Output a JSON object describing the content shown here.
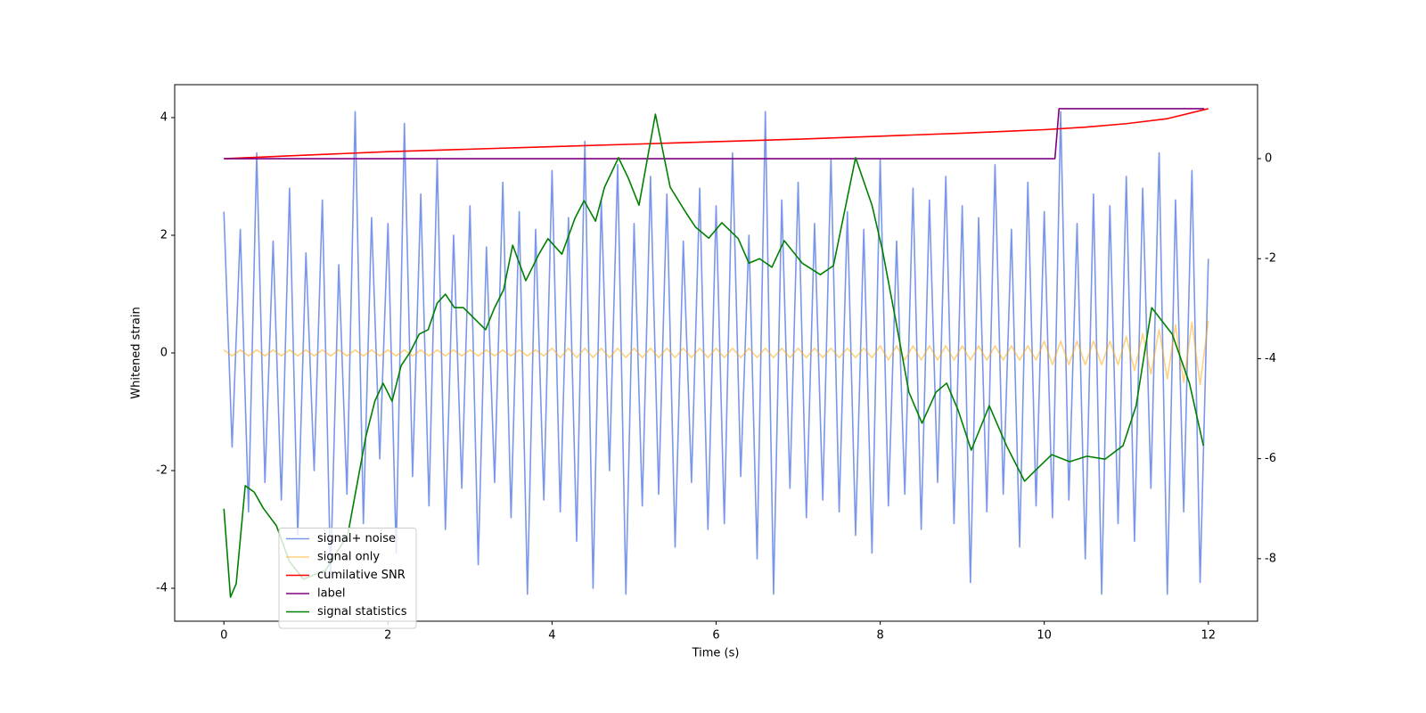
{
  "chart_data": {
    "type": "line",
    "xlabel": "Time (s)",
    "ylabel": "Whitened strain",
    "xlim": [
      -0.6,
      12.6
    ],
    "xticks": [
      0,
      2,
      4,
      6,
      8,
      10,
      12
    ],
    "ylim": [
      -4.56,
      4.56
    ],
    "yticks": [
      -4,
      -2,
      0,
      2,
      4
    ],
    "y2lim": [
      -9.25,
      1.48
    ],
    "y2ticks": [
      -8,
      -6,
      -4,
      -2,
      0
    ],
    "legend": "lower left",
    "x": [
      0,
      0.1,
      0.2,
      0.3,
      0.4,
      0.5,
      0.6,
      0.7,
      0.8,
      0.9,
      1,
      1.1,
      1.2,
      1.3,
      1.4,
      1.5,
      1.6,
      1.7,
      1.8,
      1.9,
      2,
      2.1,
      2.2,
      2.3,
      2.4,
      2.5,
      2.6,
      2.7,
      2.8,
      2.9,
      3,
      3.1,
      3.2,
      3.3,
      3.4,
      3.5,
      3.6,
      3.7,
      3.8,
      3.9,
      4,
      4.1,
      4.2,
      4.3,
      4.4,
      4.5,
      4.6,
      4.7,
      4.8,
      4.9,
      5,
      5.1,
      5.2,
      5.3,
      5.4,
      5.5,
      5.6,
      5.7,
      5.8,
      5.9,
      6,
      6.1,
      6.2,
      6.3,
      6.4,
      6.5,
      6.6,
      6.7,
      6.8,
      6.9,
      7,
      7.1,
      7.2,
      7.3,
      7.4,
      7.5,
      7.6,
      7.7,
      7.8,
      7.9,
      8,
      8.1,
      8.2,
      8.3,
      8.4,
      8.5,
      8.6,
      8.7,
      8.8,
      8.9,
      9,
      9.1,
      9.2,
      9.3,
      9.4,
      9.5,
      9.6,
      9.7,
      9.8,
      9.9,
      10,
      10.1,
      10.2,
      10.3,
      10.4,
      10.5,
      10.6,
      10.7,
      10.8,
      10.9,
      11,
      11.1,
      11.2,
      11.3,
      11.4,
      11.5,
      11.6,
      11.7,
      11.8,
      11.9,
      12
    ],
    "series": [
      {
        "name": "signal+ noise",
        "color": "#4169e1",
        "alpha": 0.7,
        "axis": "y",
        "values": [
          2.4,
          -1.6,
          2.1,
          -2.7,
          3.4,
          -2.2,
          1.9,
          -2.5,
          2.8,
          -3.1,
          1.7,
          -2.0,
          2.6,
          -3.8,
          1.5,
          -2.4,
          4.1,
          -2.9,
          2.3,
          -1.8,
          2.2,
          -3.4,
          3.9,
          -2.1,
          2.7,
          -2.6,
          3.3,
          -3.0,
          2.0,
          -2.3,
          2.5,
          -3.6,
          1.8,
          -2.2,
          2.9,
          -2.8,
          2.4,
          -4.1,
          2.1,
          -2.5,
          3.1,
          -2.7,
          2.3,
          -3.2,
          3.6,
          -4.0,
          2.6,
          -2.0,
          3.2,
          -4.1,
          2.2,
          -2.6,
          3.0,
          -2.4,
          2.7,
          -3.3,
          1.9,
          -2.2,
          2.8,
          -3.0,
          2.5,
          -2.9,
          3.4,
          -2.1,
          2.0,
          -3.5,
          4.1,
          -4.1,
          2.6,
          -2.3,
          2.9,
          -2.8,
          2.2,
          -2.5,
          3.3,
          -2.7,
          2.4,
          -3.1,
          2.1,
          -3.4,
          3.3,
          -2.6,
          1.9,
          -2.4,
          2.8,
          -3.0,
          2.6,
          -2.2,
          3.0,
          -2.9,
          2.5,
          -3.9,
          2.3,
          -2.7,
          3.2,
          -2.4,
          2.1,
          -3.3,
          2.9,
          -2.6,
          2.4,
          -2.8,
          4.1,
          -2.5,
          2.2,
          -3.5,
          2.7,
          -4.1,
          2.5,
          -2.9,
          3.0,
          -3.2,
          2.8,
          -2.3,
          3.4,
          -4.1,
          2.6,
          -2.7,
          3.1,
          -3.9,
          1.6
        ]
      },
      {
        "name": "signal only",
        "color": "orange",
        "alpha": 0.5,
        "axis": "y",
        "values": [
          0.05,
          -0.05,
          0.05,
          -0.05,
          0.05,
          -0.05,
          0.05,
          -0.05,
          0.05,
          -0.05,
          0.05,
          -0.05,
          0.05,
          -0.05,
          0.05,
          -0.05,
          0.05,
          -0.05,
          0.05,
          -0.05,
          0.05,
          -0.05,
          0.05,
          -0.05,
          0.05,
          -0.05,
          0.05,
          -0.05,
          0.05,
          -0.05,
          0.05,
          -0.05,
          0.05,
          -0.05,
          0.05,
          -0.05,
          0.05,
          -0.05,
          0.05,
          -0.05,
          0.08,
          -0.08,
          0.08,
          -0.08,
          0.08,
          -0.08,
          0.08,
          -0.08,
          0.08,
          -0.08,
          0.08,
          -0.08,
          0.08,
          -0.08,
          0.08,
          -0.08,
          0.08,
          -0.08,
          0.08,
          -0.08,
          0.08,
          -0.08,
          0.08,
          -0.08,
          0.08,
          -0.08,
          0.08,
          -0.08,
          0.08,
          -0.08,
          0.08,
          -0.08,
          0.08,
          -0.08,
          0.08,
          -0.08,
          0.08,
          -0.08,
          0.08,
          -0.08,
          0.12,
          -0.12,
          0.12,
          -0.12,
          0.12,
          -0.12,
          0.12,
          -0.12,
          0.12,
          -0.12,
          0.12,
          -0.12,
          0.12,
          -0.12,
          0.12,
          -0.12,
          0.12,
          -0.12,
          0.12,
          -0.12,
          0.2,
          -0.2,
          0.2,
          -0.2,
          0.2,
          -0.2,
          0.2,
          -0.2,
          0.2,
          -0.2,
          0.28,
          -0.3,
          0.33,
          -0.36,
          0.4,
          -0.44,
          0.48,
          -0.5,
          0.52,
          -0.54,
          0.55
        ]
      },
      {
        "name": "cumilative SNR",
        "color": "red",
        "axis": "y2",
        "x": [
          0,
          1,
          2,
          3,
          4,
          5,
          6,
          7,
          8,
          9,
          10,
          10.5,
          11,
          11.5,
          12
        ],
        "values": [
          0,
          0.07,
          0.14,
          0.19,
          0.24,
          0.29,
          0.34,
          0.39,
          0.45,
          0.51,
          0.58,
          0.63,
          0.7,
          0.8,
          1.0
        ]
      },
      {
        "name": "label",
        "color": "purple",
        "axis": "y2",
        "x": [
          0,
          10.13,
          10.18,
          11.95
        ],
        "values": [
          0,
          0,
          1,
          1
        ]
      },
      {
        "name": "signal statistics",
        "color": "green",
        "axis": "y2",
        "x": [
          0,
          0.08,
          0.15,
          0.26,
          0.37,
          0.48,
          0.64,
          0.8,
          0.97,
          1.24,
          1.51,
          1.73,
          1.84,
          1.94,
          2.05,
          2.16,
          2.27,
          2.38,
          2.49,
          2.6,
          2.7,
          2.81,
          2.92,
          3.03,
          3.19,
          3.3,
          3.41,
          3.52,
          3.68,
          3.84,
          3.95,
          4.12,
          4.28,
          4.39,
          4.53,
          4.64,
          4.81,
          4.93,
          5.06,
          5.26,
          5.44,
          5.64,
          5.75,
          5.91,
          6.07,
          6.27,
          6.4,
          6.53,
          6.68,
          6.83,
          7.05,
          7.27,
          7.43,
          7.7,
          7.9,
          8.03,
          8.19,
          8.35,
          8.51,
          8.68,
          8.81,
          8.95,
          9.11,
          9.33,
          9.54,
          9.76,
          9.87,
          10.09,
          10.31,
          10.52,
          10.74,
          10.96,
          11.12,
          11.31,
          11.56,
          11.77,
          11.94
        ],
        "values": [
          -7.0,
          -8.77,
          -8.5,
          -6.54,
          -6.67,
          -6.99,
          -7.34,
          -8.06,
          -8.41,
          -8.23,
          -7.52,
          -5.56,
          -4.85,
          -4.49,
          -4.85,
          -4.14,
          -3.87,
          -3.51,
          -3.42,
          -2.89,
          -2.71,
          -2.98,
          -2.98,
          -3.16,
          -3.42,
          -2.98,
          -2.62,
          -1.73,
          -2.44,
          -1.91,
          -1.6,
          -1.91,
          -1.19,
          -0.84,
          -1.25,
          -0.57,
          0.02,
          -0.39,
          -0.93,
          0.89,
          -0.57,
          -1.1,
          -1.37,
          -1.59,
          -1.28,
          -1.6,
          -2.09,
          -2.0,
          -2.17,
          -1.64,
          -2.09,
          -2.32,
          -2.14,
          0.02,
          -0.93,
          -1.85,
          -3.24,
          -4.67,
          -5.29,
          -4.67,
          -4.49,
          -5.03,
          -5.83,
          -4.94,
          -5.74,
          -6.45,
          -6.27,
          -5.92,
          -6.06,
          -5.95,
          -6.01,
          -5.74,
          -4.94,
          -2.98,
          -3.51,
          -4.49,
          -5.74
        ]
      }
    ]
  }
}
